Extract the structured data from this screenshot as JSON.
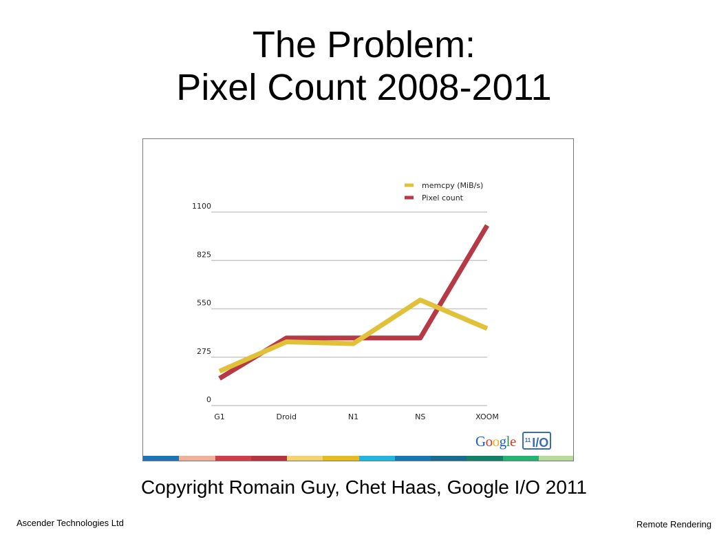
{
  "slide": {
    "title_line1": "The Problem:",
    "title_line2": "Pixel Count 2008-2011",
    "copyright": "Copyright Romain Guy, Chet Haas, Google I/O 2011",
    "footer_left": "Ascender Technologies Ltd",
    "footer_right": "Remote Rendering"
  },
  "logo": {
    "google_text": "Google",
    "io_text": "I/O",
    "year": "11"
  },
  "colors": {
    "memcpy": "#e2c13a",
    "pixel": "#b63a45",
    "grid": "#c8c8c8",
    "bottom_bar": [
      "#1b73b8",
      "#f0b198",
      "#d43d48",
      "#b8333e",
      "#f3d36b",
      "#e8bb1c",
      "#1fb6e3",
      "#1478b6",
      "#156d93",
      "#13806a",
      "#21b472",
      "#b6dc9a"
    ]
  },
  "chart_data": {
    "type": "line",
    "categories": [
      "G1",
      "Droid",
      "N1",
      "NS",
      "XOOM"
    ],
    "ylim": [
      0,
      1100
    ],
    "yticks": [
      "0",
      "275",
      "550",
      "825",
      "1100"
    ],
    "legend_position": "top-right",
    "grid": true,
    "series": [
      {
        "name": "memcpy (MiB/s)",
        "values": [
          195,
          362,
          352,
          600,
          438
        ]
      },
      {
        "name": "Pixel count",
        "values": [
          154,
          384,
          384,
          384,
          1024
        ]
      }
    ]
  }
}
